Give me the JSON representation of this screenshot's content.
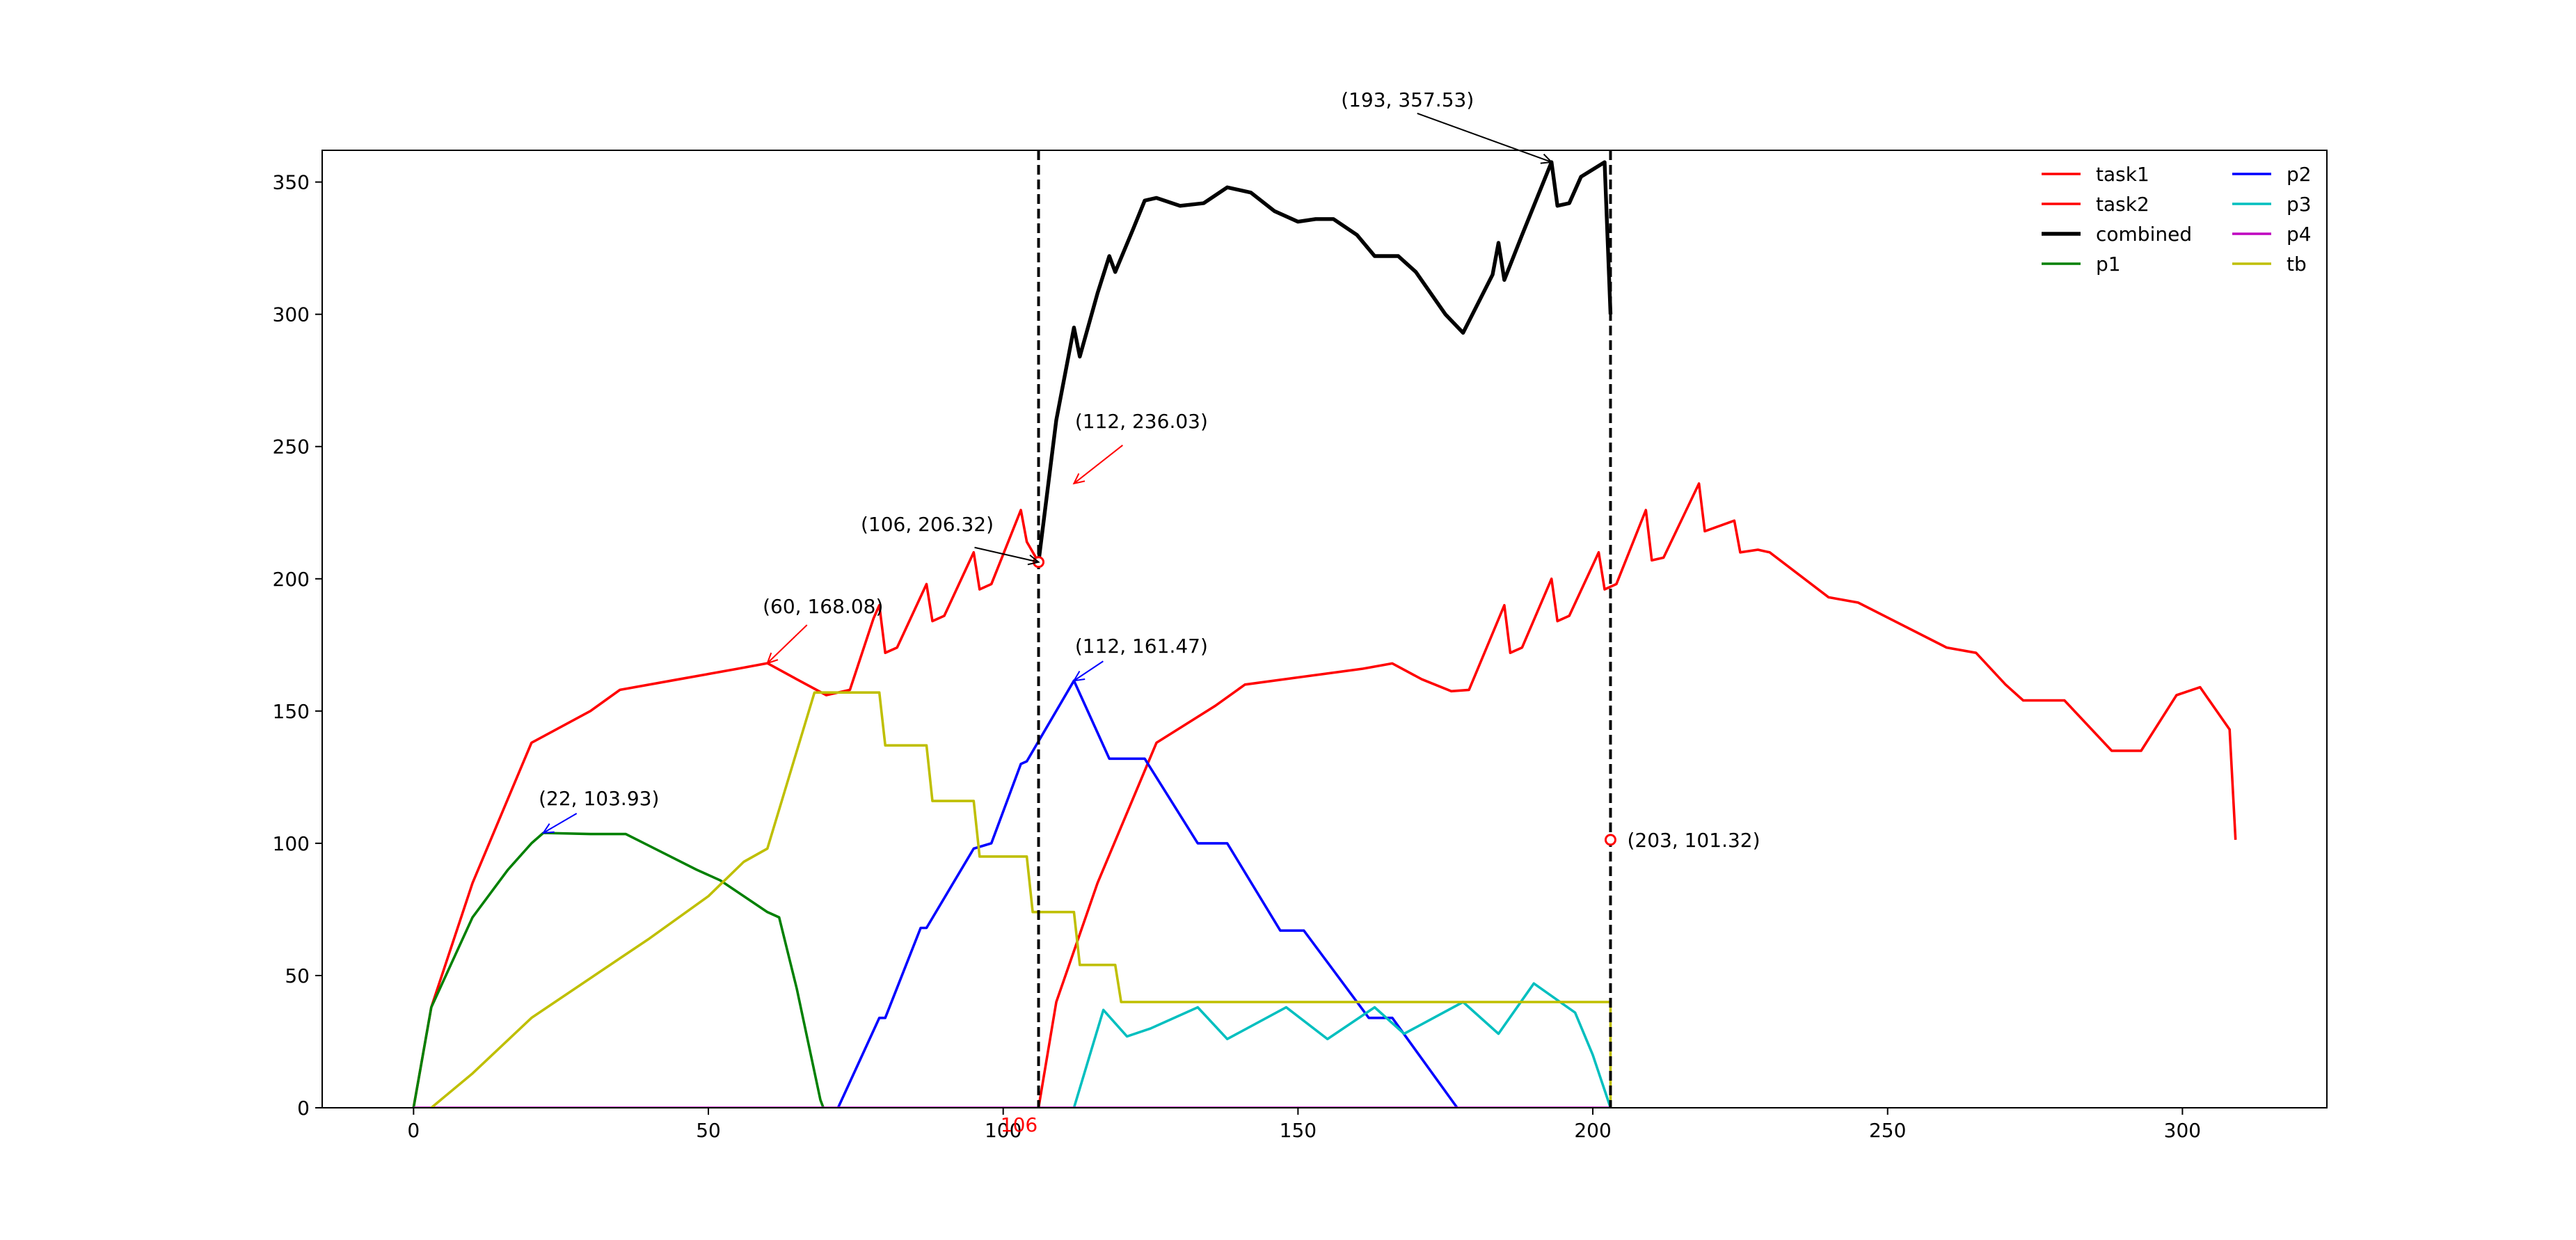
{
  "chart_data": {
    "type": "line",
    "xlim": [
      -15.5,
      324.5
    ],
    "ylim": [
      0,
      362
    ],
    "xticks": [
      0,
      50,
      100,
      150,
      200,
      250,
      300
    ],
    "yticks": [
      0,
      50,
      100,
      150,
      200,
      250,
      300,
      350
    ],
    "xtick_labels": [
      "0",
      "50",
      "100",
      "150",
      "200",
      "250",
      "300"
    ],
    "ytick_labels": [
      "0",
      "50",
      "100",
      "150",
      "200",
      "250",
      "300",
      "350"
    ],
    "xlabel": "",
    "ylabel": "",
    "title": "",
    "grid": false,
    "legend_placement": "top-right",
    "legend_columns": 2,
    "series": [
      {
        "name": "task1",
        "color": "#ff0000",
        "width": 2,
        "points": [
          [
            0,
            0
          ],
          [
            3,
            38
          ],
          [
            10,
            85
          ],
          [
            20,
            138
          ],
          [
            30,
            150
          ],
          [
            35,
            158
          ],
          [
            45,
            162
          ],
          [
            55,
            166
          ],
          [
            60,
            168.08
          ],
          [
            65,
            162
          ],
          [
            70,
            156
          ],
          [
            74,
            158
          ],
          [
            78,
            185
          ],
          [
            79,
            190
          ],
          [
            80,
            172
          ],
          [
            82,
            174
          ],
          [
            87,
            198
          ],
          [
            88,
            184
          ],
          [
            90,
            186
          ],
          [
            95,
            210
          ],
          [
            96,
            196
          ],
          [
            98,
            198
          ],
          [
            103,
            226
          ],
          [
            104,
            214
          ],
          [
            106,
            206.32
          ]
        ]
      },
      {
        "name": "task2",
        "color": "#ff0000",
        "width": 2,
        "points": [
          [
            106,
            0
          ],
          [
            109,
            40
          ],
          [
            116,
            85
          ],
          [
            126,
            138
          ],
          [
            136,
            152
          ],
          [
            141,
            160
          ],
          [
            151,
            163
          ],
          [
            161,
            166
          ],
          [
            166,
            168
          ],
          [
            171,
            162
          ],
          [
            176,
            157.5
          ],
          [
            179,
            158
          ],
          [
            185,
            190
          ],
          [
            186,
            172
          ],
          [
            188,
            174
          ],
          [
            193,
            200
          ],
          [
            194,
            184
          ],
          [
            196,
            186
          ],
          [
            201,
            210
          ],
          [
            202,
            196
          ],
          [
            204,
            198
          ],
          [
            209,
            226
          ],
          [
            210,
            207
          ],
          [
            212,
            208
          ],
          [
            218,
            236
          ],
          [
            219,
            218
          ],
          [
            224,
            222
          ],
          [
            225,
            210
          ],
          [
            228,
            211
          ],
          [
            230,
            210
          ],
          [
            240,
            193
          ],
          [
            245,
            191
          ],
          [
            260,
            174
          ],
          [
            265,
            172
          ],
          [
            270,
            160
          ],
          [
            273,
            154
          ],
          [
            280,
            154
          ],
          [
            288,
            135
          ],
          [
            293,
            135
          ],
          [
            299,
            156
          ],
          [
            303,
            159
          ],
          [
            308,
            143
          ],
          [
            309,
            101.32
          ]
        ]
      },
      {
        "name": "combined",
        "color": "#000000",
        "width": 3,
        "points": [
          [
            106,
            206.32
          ],
          [
            109,
            260
          ],
          [
            112,
            295
          ],
          [
            113,
            284
          ],
          [
            116,
            308
          ],
          [
            118,
            322
          ],
          [
            119,
            316
          ],
          [
            122,
            332
          ],
          [
            124,
            343
          ],
          [
            126,
            344
          ],
          [
            130,
            341
          ],
          [
            134,
            342
          ],
          [
            138,
            348
          ],
          [
            142,
            346
          ],
          [
            146,
            339
          ],
          [
            150,
            335
          ],
          [
            153,
            336
          ],
          [
            156,
            336
          ],
          [
            160,
            330
          ],
          [
            163,
            322
          ],
          [
            167,
            322
          ],
          [
            170,
            316
          ],
          [
            175,
            300
          ],
          [
            178,
            293
          ],
          [
            183,
            315
          ],
          [
            184,
            327
          ],
          [
            185,
            313
          ],
          [
            188,
            330
          ],
          [
            193,
            357.53
          ],
          [
            194,
            341
          ],
          [
            196,
            342
          ],
          [
            198,
            352
          ],
          [
            202,
            357.5
          ],
          [
            203,
            300
          ]
        ]
      },
      {
        "name": "p1",
        "color": "#008000",
        "width": 2,
        "points": [
          [
            0,
            0
          ],
          [
            3,
            38
          ],
          [
            10,
            72
          ],
          [
            16,
            90
          ],
          [
            20,
            100
          ],
          [
            22,
            103.93
          ],
          [
            30,
            103.5
          ],
          [
            36,
            103.5
          ],
          [
            40,
            99
          ],
          [
            48,
            90
          ],
          [
            52,
            86
          ],
          [
            60,
            74
          ],
          [
            62,
            72
          ],
          [
            65,
            45
          ],
          [
            69,
            3
          ],
          [
            69.5,
            0
          ]
        ]
      },
      {
        "name": "p2",
        "color": "#0000ff",
        "width": 2,
        "points": [
          [
            72,
            0
          ],
          [
            79,
            34
          ],
          [
            80,
            34
          ],
          [
            86,
            68
          ],
          [
            87,
            68
          ],
          [
            95,
            98
          ],
          [
            98,
            100
          ],
          [
            103,
            130
          ],
          [
            104,
            131
          ],
          [
            112,
            161.47
          ],
          [
            118,
            132
          ],
          [
            124,
            132
          ],
          [
            133,
            100
          ],
          [
            138,
            100
          ],
          [
            147,
            67
          ],
          [
            151,
            67
          ],
          [
            162,
            34
          ],
          [
            166,
            34
          ],
          [
            177,
            0
          ]
        ]
      },
      {
        "name": "p3",
        "color": "#00bfbf",
        "width": 2,
        "points": [
          [
            112,
            0
          ],
          [
            117,
            37
          ],
          [
            121,
            27
          ],
          [
            125,
            30
          ],
          [
            133,
            38
          ],
          [
            138,
            26
          ],
          [
            148,
            38
          ],
          [
            155,
            26
          ],
          [
            163,
            38
          ],
          [
            168,
            28
          ],
          [
            178,
            40
          ],
          [
            184,
            28
          ],
          [
            190,
            47
          ],
          [
            197,
            36
          ],
          [
            200,
            20
          ],
          [
            203,
            0
          ]
        ]
      },
      {
        "name": "p4",
        "color": "#bf00bf",
        "width": 2,
        "points": [
          [
            0,
            0
          ],
          [
            203,
            0
          ]
        ]
      },
      {
        "name": "tb",
        "color": "#bfbf00",
        "width": 2,
        "points": [
          [
            3,
            0
          ],
          [
            10,
            13
          ],
          [
            20,
            34
          ],
          [
            30,
            49
          ],
          [
            40,
            64
          ],
          [
            50,
            80
          ],
          [
            56,
            93
          ],
          [
            60,
            98
          ],
          [
            68,
            157
          ],
          [
            79,
            157
          ],
          [
            80,
            137
          ],
          [
            87,
            137
          ],
          [
            88,
            116
          ],
          [
            95,
            116
          ],
          [
            96,
            95
          ],
          [
            104,
            95
          ],
          [
            105,
            74
          ],
          [
            112,
            74
          ],
          [
            113,
            54
          ],
          [
            119,
            54
          ],
          [
            120,
            40
          ],
          [
            203,
            40
          ],
          [
            203,
            0
          ]
        ]
      }
    ],
    "vertical_lines": [
      106,
      203
    ],
    "highlight_points": [
      [
        106,
        206.32
      ],
      [
        203,
        101.32
      ]
    ],
    "highlight_tick": {
      "x": 106,
      "label": "106",
      "color": "#ff0000"
    },
    "annotations": [
      {
        "text": "(193, 357.53)",
        "x": 193,
        "y": 357.53,
        "color": "#000000"
      },
      {
        "text": "(112, 236.03)",
        "x": 112,
        "y": 236.03,
        "color": "#ff0000"
      },
      {
        "text": "(106, 206.32)",
        "x": 106,
        "y": 206.32,
        "color": "#000000"
      },
      {
        "text": "(60, 168.08)",
        "x": 60,
        "y": 168.08,
        "color": "#ff0000"
      },
      {
        "text": "(112, 161.47)",
        "x": 112,
        "y": 161.47,
        "color": "#0000ff"
      },
      {
        "text": "(22, 103.93)",
        "x": 22,
        "y": 103.93,
        "color": "#0000ff"
      },
      {
        "text": "(203, 101.32)",
        "x": 203,
        "y": 101.32,
        "color": "#000000"
      }
    ]
  }
}
